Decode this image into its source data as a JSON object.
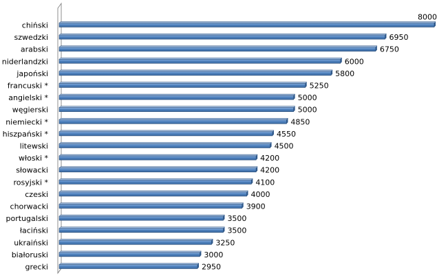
{
  "chart_data": {
    "type": "bar",
    "orientation": "horizontal",
    "categories": [
      "chiński",
      "szwedzki",
      "arabski",
      "niderlandzki",
      "japoński",
      "francuski *",
      "angielski *",
      "węgierski",
      "niemiecki *",
      "hiszpański *",
      "litewski",
      "włoski *",
      "słowacki",
      "rosyjski *",
      "czeski",
      "chorwacki",
      "portugalski",
      "łaciński",
      "ukraiński",
      "białoruski",
      "grecki"
    ],
    "values": [
      8000,
      6950,
      6750,
      6000,
      5800,
      5250,
      5000,
      5000,
      4850,
      4550,
      4500,
      4200,
      4200,
      4100,
      4000,
      3900,
      3500,
      3500,
      3250,
      3000,
      2950
    ],
    "title": "",
    "xlabel": "",
    "ylabel": "",
    "xlim": [
      0,
      8000
    ],
    "grid": false,
    "legend": "none",
    "data_labels": true,
    "bar_color": "#4f81bd",
    "bar_edge_color": "#2c4d75"
  }
}
